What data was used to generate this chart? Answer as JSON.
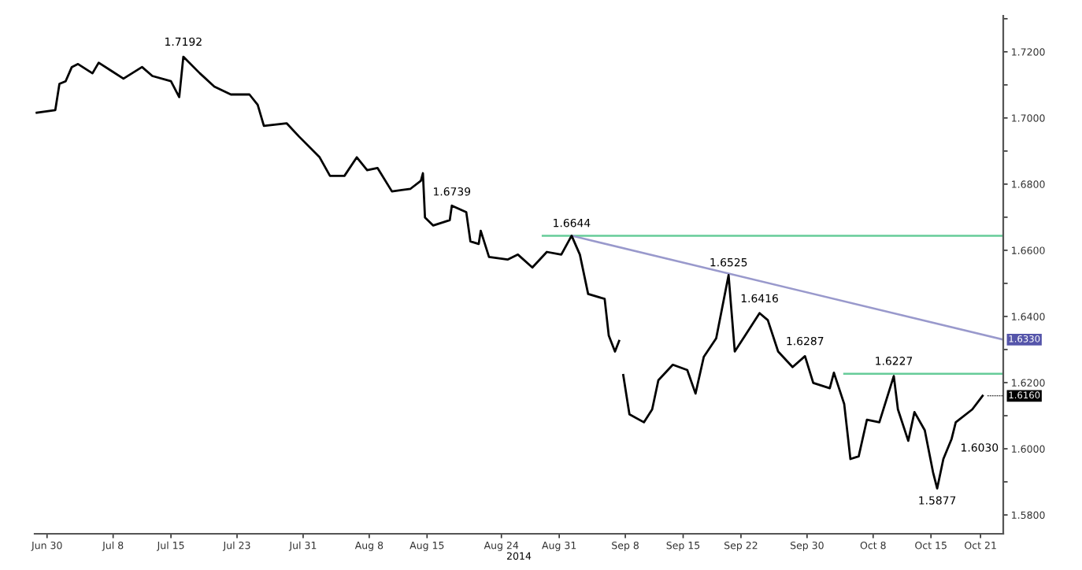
{
  "chart_data": {
    "type": "line",
    "xlabel": "2014",
    "xlim": [
      "2014-06-28T12:00",
      "2014-10-23T18:00"
    ],
    "ylim": [
      1.5743,
      1.7309
    ],
    "xticks": [
      {
        "value": "2014-06-30",
        "label": "Jun 30"
      },
      {
        "value": "2014-07-08",
        "label": "Jul 8"
      },
      {
        "value": "2014-07-15",
        "label": "Jul 15"
      },
      {
        "value": "2014-07-23",
        "label": "Jul 23"
      },
      {
        "value": "2014-07-31",
        "label": "Jul 31"
      },
      {
        "value": "2014-08-08",
        "label": "Aug 8"
      },
      {
        "value": "2014-08-15",
        "label": "Aug 15"
      },
      {
        "value": "2014-08-24",
        "label": "Aug 24"
      },
      {
        "value": "2014-08-31",
        "label": "Aug 31"
      },
      {
        "value": "2014-09-08",
        "label": "Sep 8"
      },
      {
        "value": "2014-09-15",
        "label": "Sep 15"
      },
      {
        "value": "2014-09-22",
        "label": "Sep 22"
      },
      {
        "value": "2014-09-30",
        "label": "Sep 30"
      },
      {
        "value": "2014-10-08",
        "label": "Oct 8"
      },
      {
        "value": "2014-10-15",
        "label": "Oct 15"
      },
      {
        "value": "2014-10-21",
        "label": "Oct 21"
      }
    ],
    "yticks": [
      {
        "value": 1.58,
        "label": "1.5800"
      },
      {
        "value": 1.59,
        "label": null
      },
      {
        "value": 1.6,
        "label": "1.6000"
      },
      {
        "value": 1.61,
        "label": null
      },
      {
        "value": 1.62,
        "label": "1.6200"
      },
      {
        "value": 1.63,
        "label": null
      },
      {
        "value": 1.64,
        "label": "1.6400"
      },
      {
        "value": 1.65,
        "label": null
      },
      {
        "value": 1.66,
        "label": "1.6600"
      },
      {
        "value": 1.67,
        "label": null
      },
      {
        "value": 1.68,
        "label": "1.6800"
      },
      {
        "value": 1.69,
        "label": null
      },
      {
        "value": 1.7,
        "label": "1.7000"
      },
      {
        "value": 1.71,
        "label": null
      },
      {
        "value": 1.72,
        "label": "1.7200"
      },
      {
        "value": 1.73,
        "label": null
      }
    ],
    "grid": false,
    "marker": "none",
    "line_style": "solid",
    "series": [
      {
        "color": "#000000",
        "x": [
          "2014-06-28T18:00",
          "2014-07-01T00:00",
          "2014-07-01T12:00",
          "2014-07-02T06:00",
          "2014-07-03T00:00",
          "2014-07-03T18:00",
          "2014-07-05T12:00",
          "2014-07-06T06:00",
          "2014-07-07T18:00",
          "2014-07-09T06:00",
          "2014-07-11T12:00",
          "2014-07-12T18:00",
          "2014-07-15T00:00",
          "2014-07-16T00:00",
          "2014-07-16T12:00",
          "2014-07-18T12:00",
          "2014-07-20T06:00",
          "2014-07-22T06:00",
          "2014-07-24T12:00",
          "2014-07-25T12:00",
          "2014-07-26T06:00",
          "2014-07-29T00:00",
          "2014-07-30T12:00",
          "2014-08-02T00:00",
          "2014-08-03T06:00",
          "2014-08-05T00:00",
          "2014-08-06T12:00",
          "2014-08-07T18:00",
          "2014-08-09T00:00",
          "2014-08-10T18:00",
          "2014-08-13T00:00",
          "2014-08-14T06:00",
          "2014-08-14T12:00",
          "2014-08-14T18:00",
          "2014-08-15T18:00",
          "2014-08-17T18:00",
          "2014-08-18T00:00",
          "2014-08-19T18:00",
          "2014-08-20T06:00",
          "2014-08-21T06:00",
          "2014-08-21T12:00",
          "2014-08-22T12:00",
          "2014-08-24T18:00",
          "2014-08-26T00:00",
          "2014-08-27T18:00",
          "2014-08-29T12:00",
          "2014-08-31T06:00",
          "2014-09-01T12:00",
          "2014-09-02T12:00",
          "2014-09-03T12:00",
          "2014-09-05T12:00",
          "2014-09-06T00:00",
          "2014-09-06T18:00",
          "2014-09-07T06:00",
          "2014-09-07T12:00",
          "2014-09-07T18:00",
          "2014-09-08T12:00",
          "2014-09-10T06:00",
          "2014-09-11T06:00",
          "2014-09-12T00:00",
          "2014-09-13T18:00",
          "2014-09-15T12:00",
          "2014-09-16T12:00",
          "2014-09-17T12:00",
          "2014-09-19T00:00",
          "2014-09-20T12:00",
          "2014-09-21T06:00",
          "2014-09-22T12:00",
          "2014-09-24T06:00",
          "2014-09-25T06:00",
          "2014-09-26T12:00",
          "2014-09-28T06:00",
          "2014-09-29T18:00",
          "2014-09-30T18:00",
          "2014-10-02T18:00",
          "2014-10-03T06:00",
          "2014-10-04T12:00",
          "2014-10-05T06:00",
          "2014-10-06T06:00",
          "2014-10-07T06:00",
          "2014-10-08T18:00",
          "2014-10-10T12:00",
          "2014-10-11T00:00",
          "2014-10-12T06:00",
          "2014-10-13T00:00",
          "2014-10-14T06:00",
          "2014-10-15T06:00",
          "2014-10-15T18:00",
          "2014-10-16T12:00",
          "2014-10-17T12:00",
          "2014-10-18T00:00",
          "2014-10-20T00:00",
          "2014-10-21T06:00"
        ],
        "values": [
          1.7016,
          1.7024,
          1.7103,
          1.7111,
          1.7154,
          1.7163,
          1.7135,
          1.7167,
          1.7143,
          1.7119,
          1.7154,
          1.7127,
          1.7111,
          1.7063,
          1.7185,
          1.7135,
          1.7095,
          1.7071,
          1.7071,
          1.704,
          1.6976,
          1.6984,
          1.6944,
          1.6881,
          1.6825,
          1.6825,
          1.6881,
          1.6842,
          1.6849,
          1.6778,
          1.6786,
          1.681,
          1.6833,
          1.6699,
          1.6675,
          1.6691,
          1.6735,
          1.6715,
          1.6627,
          1.6619,
          1.6659,
          1.658,
          1.6572,
          1.6587,
          1.6548,
          1.6595,
          1.6587,
          1.6644,
          1.6587,
          1.6468,
          1.6453,
          1.6342,
          1.6294,
          1.6326,
          null,
          1.6223,
          1.6104,
          1.608,
          1.6119,
          1.6207,
          1.6254,
          1.6238,
          1.6167,
          1.6278,
          1.6334,
          1.6525,
          1.6294,
          1.6342,
          1.641,
          1.6389,
          1.6294,
          1.6247,
          1.628,
          1.6199,
          1.6183,
          1.623,
          1.6135,
          1.5969,
          1.5977,
          1.6088,
          1.608,
          1.622,
          1.6119,
          1.6024,
          1.6111,
          1.6056,
          1.5929,
          1.588,
          1.5969,
          1.603,
          1.608,
          1.6119,
          1.616
        ]
      },
      {
        "color": "#66cc99",
        "x": [
          "2014-08-29T00:00",
          "2014-10-23T18:00"
        ],
        "values": [
          1.6644,
          1.6644
        ]
      },
      {
        "color": "#66cc99",
        "x": [
          "2014-10-04T12:00",
          "2014-10-23T18:00"
        ],
        "values": [
          1.6227,
          1.6227
        ]
      },
      {
        "color": "#9999cc",
        "x": [
          "2014-09-01T12:00",
          "2014-10-23T18:00"
        ],
        "values": [
          1.6644,
          1.633
        ]
      }
    ],
    "annotations": [
      {
        "text": "1.7192",
        "x": "2014-07-16T12:00",
        "y": 1.7192
      },
      {
        "text": "1.6739",
        "x": "2014-08-18T00:00",
        "y": 1.6739
      },
      {
        "text": "1.6644",
        "x": "2014-09-01T12:00",
        "y": 1.6644
      },
      {
        "text": "1.6525",
        "x": "2014-09-20T12:00",
        "y": 1.6525
      },
      {
        "text": "1.6416",
        "x": "2014-09-24T06:00",
        "y": 1.6416
      },
      {
        "text": "1.6287",
        "x": "2014-09-29T18:00",
        "y": 1.6287
      },
      {
        "text": "1.6227",
        "x": "2014-10-10T12:00",
        "y": 1.6227
      },
      {
        "text": "1.6030",
        "x": "2014-10-17T12:00",
        "y": 1.603
      },
      {
        "text": "1.5877",
        "x": "2014-10-15T18:00",
        "y": 1.5877
      },
      {
        "text": "1.6330",
        "x": "2014-10-23T18:00",
        "y": 1.633
      },
      {
        "text": "1.6160",
        "x": "2014-10-21T06:00",
        "y": 1.616
      }
    ]
  }
}
